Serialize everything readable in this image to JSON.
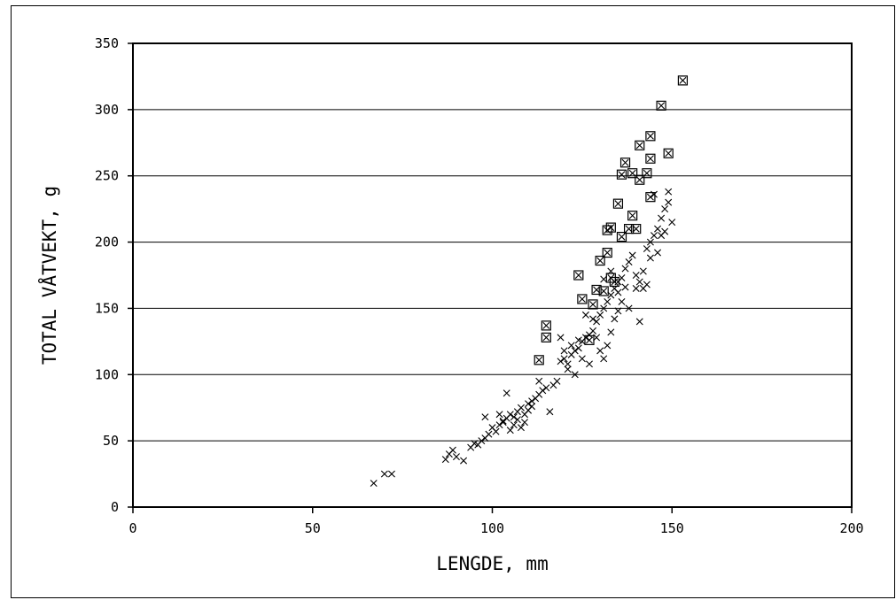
{
  "chart_data": {
    "type": "scatter",
    "title": "",
    "xlabel": "LENGDE, mm",
    "ylabel": "TOTAL VÅTVEKT, g",
    "xlim": [
      0,
      200
    ],
    "ylim": [
      0,
      350
    ],
    "xticks": [
      "0",
      "50",
      "100",
      "150",
      "200"
    ],
    "yticks": [
      "0",
      "50",
      "100",
      "150",
      "200",
      "250",
      "300",
      "350"
    ],
    "grid": "horizontal",
    "series": [
      {
        "marker": "x",
        "points": [
          [
            67,
            18
          ],
          [
            70,
            25
          ],
          [
            72,
            25
          ],
          [
            87,
            36
          ],
          [
            88,
            40
          ],
          [
            89,
            43
          ],
          [
            90,
            38
          ],
          [
            92,
            35
          ],
          [
            94,
            45
          ],
          [
            95,
            48
          ],
          [
            96,
            47
          ],
          [
            97,
            50
          ],
          [
            98,
            52
          ],
          [
            99,
            55
          ],
          [
            100,
            60
          ],
          [
            101,
            57
          ],
          [
            102,
            62
          ],
          [
            103,
            65
          ],
          [
            104,
            67
          ],
          [
            105,
            70
          ],
          [
            106,
            68
          ],
          [
            107,
            72
          ],
          [
            108,
            75
          ],
          [
            109,
            70
          ],
          [
            110,
            73
          ],
          [
            98,
            68
          ],
          [
            102,
            70
          ],
          [
            104,
            86
          ],
          [
            106,
            62
          ],
          [
            108,
            60
          ],
          [
            110,
            78
          ],
          [
            111,
            80
          ],
          [
            112,
            82
          ],
          [
            113,
            85
          ],
          [
            114,
            88
          ],
          [
            115,
            90
          ],
          [
            117,
            92
          ],
          [
            118,
            95
          ],
          [
            119,
            110
          ],
          [
            120,
            112
          ],
          [
            121,
            108
          ],
          [
            122,
            115
          ],
          [
            123,
            118
          ],
          [
            124,
            120
          ],
          [
            125,
            125
          ],
          [
            126,
            128
          ],
          [
            127,
            130
          ],
          [
            128,
            133
          ],
          [
            129,
            140
          ],
          [
            130,
            145
          ],
          [
            131,
            150
          ],
          [
            132,
            155
          ],
          [
            133,
            160
          ],
          [
            134,
            165
          ],
          [
            135,
            170
          ],
          [
            136,
            173
          ],
          [
            137,
            180
          ],
          [
            138,
            185
          ],
          [
            139,
            190
          ],
          [
            140,
            175
          ],
          [
            141,
            170
          ],
          [
            142,
            165
          ],
          [
            143,
            195
          ],
          [
            144,
            200
          ],
          [
            145,
            205
          ],
          [
            146,
            210
          ],
          [
            147,
            218
          ],
          [
            148,
            225
          ],
          [
            149,
            230
          ],
          [
            150,
            215
          ],
          [
            103,
            64
          ],
          [
            105,
            58
          ],
          [
            107,
            66
          ],
          [
            109,
            64
          ],
          [
            111,
            76
          ],
          [
            113,
            95
          ],
          [
            116,
            72
          ],
          [
            119,
            128
          ],
          [
            121,
            104
          ],
          [
            123,
            100
          ],
          [
            125,
            112
          ],
          [
            127,
            108
          ],
          [
            129,
            128
          ],
          [
            130,
            118
          ],
          [
            131,
            112
          ],
          [
            132,
            122
          ],
          [
            133,
            132
          ],
          [
            134,
            142
          ],
          [
            135,
            148
          ],
          [
            136,
            155
          ],
          [
            138,
            150
          ],
          [
            140,
            165
          ],
          [
            141,
            140
          ],
          [
            142,
            178
          ],
          [
            144,
            188
          ],
          [
            146,
            192
          ],
          [
            148,
            208
          ],
          [
            143,
            168
          ],
          [
            145,
            236
          ],
          [
            147,
            205
          ],
          [
            149,
            238
          ],
          [
            131,
            172
          ],
          [
            133,
            178
          ],
          [
            135,
            162
          ],
          [
            137,
            166
          ],
          [
            126,
            145
          ],
          [
            128,
            142
          ],
          [
            124,
            126
          ],
          [
            122,
            122
          ],
          [
            120,
            118
          ]
        ]
      },
      {
        "marker": "boxed-x",
        "points": [
          [
            113,
            111
          ],
          [
            115,
            128
          ],
          [
            115,
            137
          ],
          [
            124,
            175
          ],
          [
            125,
            157
          ],
          [
            127,
            126
          ],
          [
            128,
            153
          ],
          [
            129,
            164
          ],
          [
            130,
            186
          ],
          [
            131,
            163
          ],
          [
            132,
            192
          ],
          [
            132,
            209
          ],
          [
            133,
            211
          ],
          [
            133,
            173
          ],
          [
            134,
            170
          ],
          [
            135,
            229
          ],
          [
            136,
            204
          ],
          [
            136,
            251
          ],
          [
            137,
            260
          ],
          [
            138,
            210
          ],
          [
            139,
            220
          ],
          [
            139,
            252
          ],
          [
            140,
            210
          ],
          [
            141,
            247
          ],
          [
            141,
            273
          ],
          [
            143,
            252
          ],
          [
            144,
            280
          ],
          [
            144,
            263
          ],
          [
            144,
            234
          ],
          [
            147,
            303
          ],
          [
            149,
            267
          ],
          [
            153,
            322
          ]
        ]
      }
    ]
  }
}
